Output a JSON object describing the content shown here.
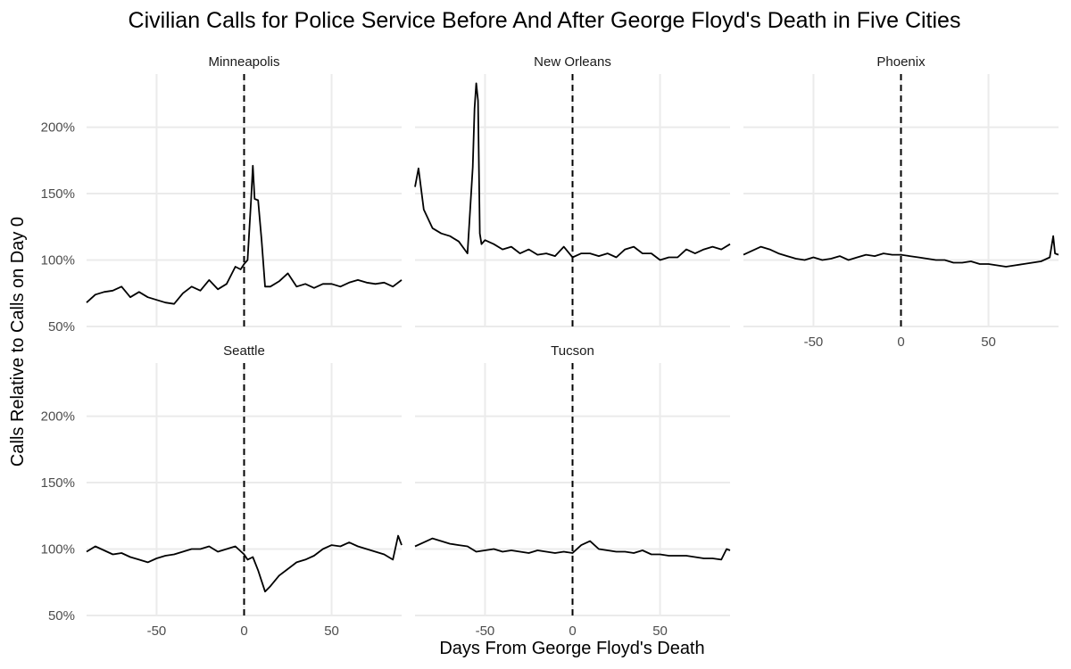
{
  "chart_data": {
    "type": "line",
    "title": "Civilian Calls for Police Service Before And After George Floyd's Death in Five Cities",
    "xlabel": "Days From George Floyd's Death",
    "ylabel": "Calls Relative to Calls on Day 0",
    "xlim": [
      -90,
      90
    ],
    "ylim": [
      0.5,
      2.4
    ],
    "x_ticks": [
      -50,
      0,
      50
    ],
    "y_ticks": [
      0.5,
      1.0,
      1.5,
      2.0
    ],
    "x_tick_labels": [
      "-50",
      "0",
      "50"
    ],
    "y_tick_labels": [
      "50%",
      "100%",
      "150%",
      "200%"
    ],
    "reference_line": {
      "x": 0,
      "style": "dashed"
    },
    "grid": true,
    "facets": [
      {
        "name": "Minneapolis",
        "x": [
          -90,
          -85,
          -80,
          -75,
          -70,
          -65,
          -60,
          -55,
          -50,
          -45,
          -40,
          -35,
          -30,
          -25,
          -20,
          -15,
          -10,
          -5,
          -2,
          0,
          2,
          4,
          5,
          6,
          8,
          10,
          12,
          15,
          20,
          25,
          30,
          35,
          40,
          45,
          50,
          55,
          60,
          65,
          70,
          75,
          80,
          85,
          90
        ],
        "y": [
          0.68,
          0.74,
          0.76,
          0.77,
          0.8,
          0.72,
          0.76,
          0.72,
          0.7,
          0.68,
          0.67,
          0.75,
          0.8,
          0.77,
          0.85,
          0.78,
          0.82,
          0.95,
          0.93,
          0.97,
          1.0,
          1.45,
          1.71,
          1.46,
          1.45,
          1.15,
          0.8,
          0.8,
          0.84,
          0.9,
          0.8,
          0.82,
          0.79,
          0.82,
          0.82,
          0.8,
          0.83,
          0.85,
          0.83,
          0.82,
          0.83,
          0.8,
          0.85
        ]
      },
      {
        "name": "New Orleans",
        "x": [
          -90,
          -88,
          -85,
          -80,
          -75,
          -70,
          -65,
          -60,
          -57,
          -56,
          -55,
          -54,
          -53,
          -52,
          -50,
          -45,
          -40,
          -35,
          -30,
          -25,
          -20,
          -15,
          -10,
          -5,
          0,
          5,
          10,
          15,
          20,
          25,
          30,
          35,
          40,
          45,
          50,
          55,
          60,
          65,
          70,
          75,
          80,
          85,
          90
        ],
        "y": [
          1.55,
          1.69,
          1.38,
          1.24,
          1.2,
          1.18,
          1.14,
          1.05,
          1.7,
          2.14,
          2.33,
          2.2,
          1.2,
          1.12,
          1.15,
          1.12,
          1.08,
          1.1,
          1.05,
          1.08,
          1.04,
          1.05,
          1.03,
          1.1,
          1.02,
          1.05,
          1.05,
          1.03,
          1.05,
          1.02,
          1.08,
          1.1,
          1.05,
          1.05,
          1.0,
          1.02,
          1.02,
          1.08,
          1.05,
          1.08,
          1.1,
          1.08,
          1.12
        ]
      },
      {
        "name": "Phoenix",
        "x": [
          -90,
          -85,
          -80,
          -75,
          -70,
          -65,
          -60,
          -55,
          -50,
          -45,
          -40,
          -35,
          -30,
          -25,
          -20,
          -15,
          -10,
          -5,
          0,
          5,
          10,
          15,
          20,
          25,
          30,
          35,
          40,
          45,
          50,
          55,
          60,
          65,
          70,
          75,
          80,
          85,
          87,
          88,
          90
        ],
        "y": [
          1.04,
          1.07,
          1.1,
          1.08,
          1.05,
          1.03,
          1.01,
          1.0,
          1.02,
          1.0,
          1.01,
          1.03,
          1.0,
          1.02,
          1.04,
          1.03,
          1.05,
          1.04,
          1.04,
          1.03,
          1.02,
          1.01,
          1.0,
          1.0,
          0.98,
          0.98,
          0.99,
          0.97,
          0.97,
          0.96,
          0.95,
          0.96,
          0.97,
          0.98,
          0.99,
          1.02,
          1.18,
          1.05,
          1.04
        ]
      },
      {
        "name": "Seattle",
        "x": [
          -90,
          -85,
          -80,
          -75,
          -70,
          -65,
          -60,
          -55,
          -50,
          -45,
          -40,
          -35,
          -30,
          -25,
          -20,
          -15,
          -10,
          -5,
          0,
          2,
          5,
          8,
          10,
          12,
          15,
          20,
          25,
          30,
          35,
          40,
          45,
          50,
          55,
          60,
          65,
          70,
          75,
          80,
          85,
          88,
          90
        ],
        "y": [
          0.98,
          1.02,
          0.99,
          0.96,
          0.97,
          0.94,
          0.92,
          0.9,
          0.93,
          0.95,
          0.96,
          0.98,
          1.0,
          1.0,
          1.02,
          0.98,
          1.0,
          1.02,
          0.96,
          0.92,
          0.94,
          0.84,
          0.76,
          0.68,
          0.72,
          0.8,
          0.85,
          0.9,
          0.92,
          0.95,
          1.0,
          1.03,
          1.02,
          1.05,
          1.02,
          1.0,
          0.98,
          0.96,
          0.92,
          1.1,
          1.03
        ]
      },
      {
        "name": "Tucson",
        "x": [
          -90,
          -85,
          -80,
          -75,
          -70,
          -65,
          -60,
          -55,
          -50,
          -45,
          -40,
          -35,
          -30,
          -25,
          -20,
          -15,
          -10,
          -5,
          0,
          5,
          10,
          15,
          20,
          25,
          30,
          35,
          40,
          45,
          50,
          55,
          60,
          65,
          70,
          75,
          80,
          85,
          88,
          90
        ],
        "y": [
          1.02,
          1.05,
          1.08,
          1.06,
          1.04,
          1.03,
          1.02,
          0.98,
          0.99,
          1.0,
          0.98,
          0.99,
          0.98,
          0.97,
          0.99,
          0.98,
          0.97,
          0.98,
          0.97,
          1.03,
          1.06,
          1.0,
          0.99,
          0.98,
          0.98,
          0.97,
          0.99,
          0.96,
          0.96,
          0.95,
          0.95,
          0.95,
          0.94,
          0.93,
          0.93,
          0.92,
          1.0,
          0.99
        ]
      }
    ]
  }
}
